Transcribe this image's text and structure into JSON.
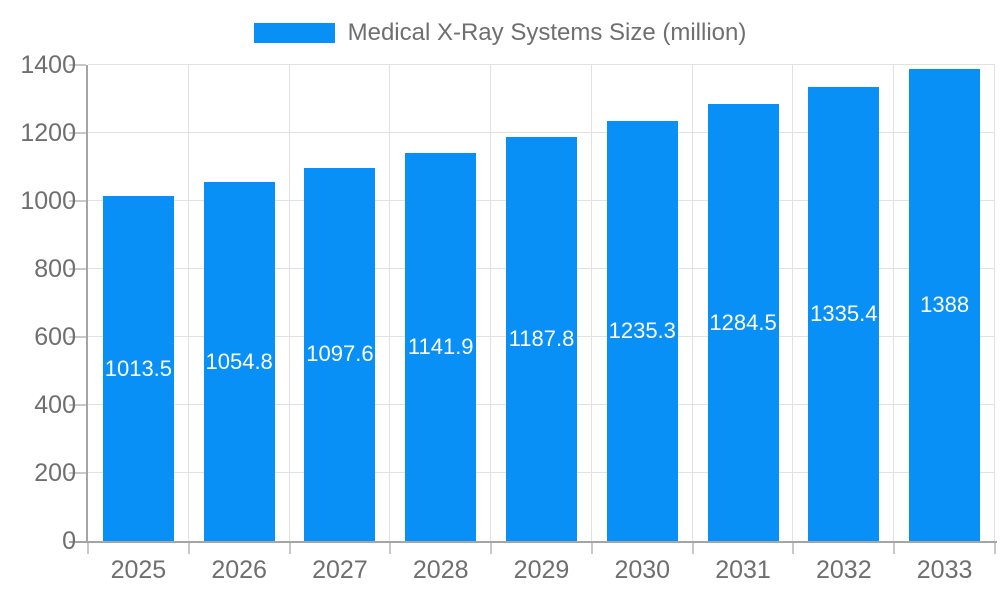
{
  "chart_data": {
    "type": "bar",
    "title": "Medical X-Ray Systems Size (million)",
    "categories": [
      "2025",
      "2026",
      "2027",
      "2028",
      "2029",
      "2030",
      "2031",
      "2032",
      "2033"
    ],
    "values": [
      1013.5,
      1054.8,
      1097.6,
      1141.9,
      1187.8,
      1235.3,
      1284.5,
      1335.4,
      1388
    ],
    "value_labels": [
      "1013.5",
      "1054.8",
      "1097.6",
      "1141.9",
      "1187.8",
      "1235.3",
      "1284.5",
      "1335.4",
      "1388"
    ],
    "xlabel": "",
    "ylabel": "",
    "ylim": [
      0,
      1400
    ],
    "yticks": [
      0,
      200,
      400,
      600,
      800,
      1000,
      1200,
      1400
    ],
    "grid": true,
    "legend_position": "top-center",
    "value_label_position": "inside-center",
    "colors": {
      "bar": "#0890f6",
      "value_label_text": "#ffffff",
      "axis_text": "#6f6f6f",
      "axis_line": "#a5a5a5",
      "gridline": "#e2e2e2",
      "tick": "#c8c8c8",
      "background": "#ffffff"
    }
  }
}
